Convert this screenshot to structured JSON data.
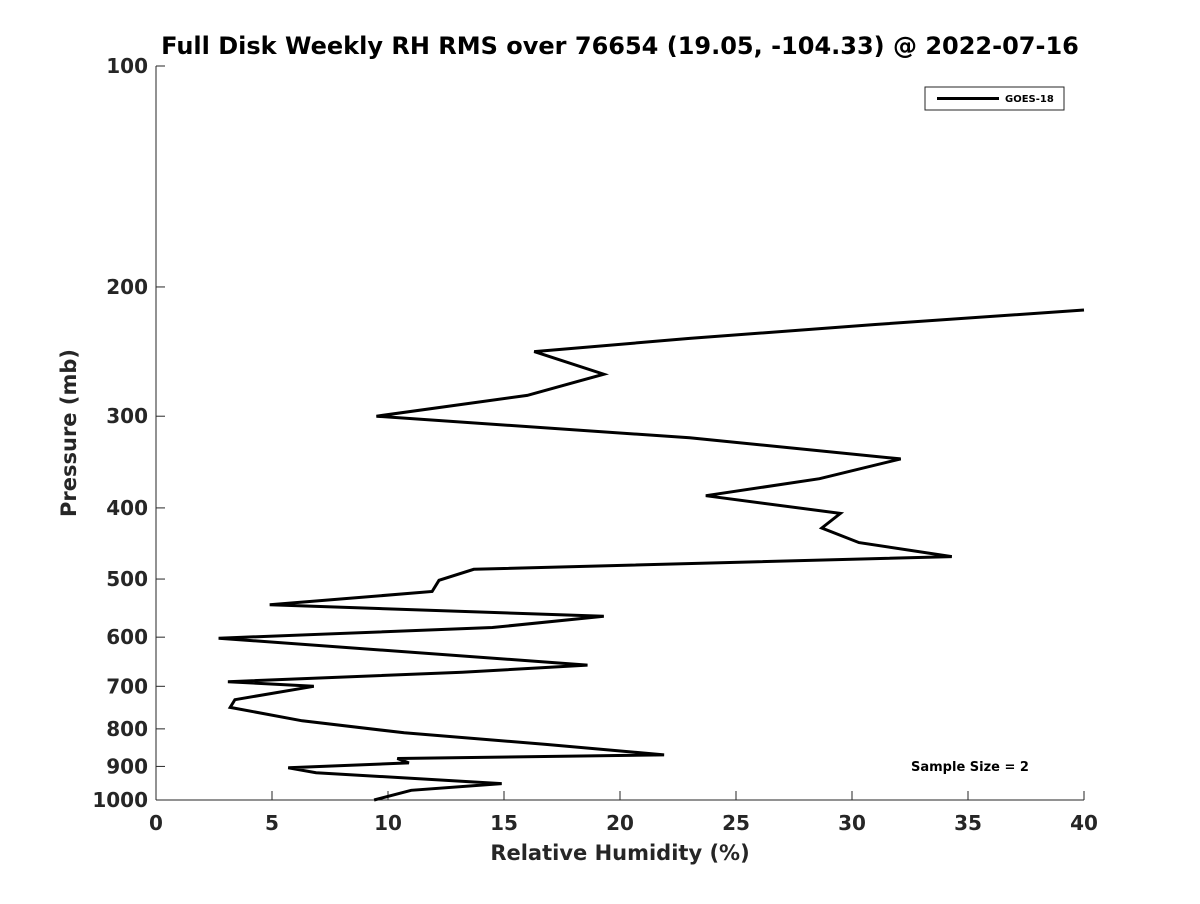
{
  "chart_data": {
    "type": "line",
    "title": "Full Disk Weekly RH RMS over 76654 (19.05, -104.33) @ 2022-07-16",
    "xlabel": "Relative Humidity (%)",
    "ylabel": "Pressure (mb)",
    "xlim": [
      0,
      40
    ],
    "ylim": [
      100,
      1000
    ],
    "y_scale": "log",
    "y_reversed": true,
    "x_ticks": [
      0,
      5,
      10,
      15,
      20,
      25,
      30,
      35,
      40
    ],
    "y_ticks": [
      100,
      200,
      300,
      400,
      500,
      600,
      700,
      800,
      900,
      1000
    ],
    "grid": false,
    "legend_position": "top-right",
    "annotation": "Sample Size = 2",
    "line_color": "#000000",
    "series": [
      {
        "name": "GOES-18",
        "points": [
          [
            40.0,
            215
          ],
          [
            31.0,
            225
          ],
          [
            23.0,
            235
          ],
          [
            16.3,
            245
          ],
          [
            19.3,
            263
          ],
          [
            16.0,
            281
          ],
          [
            9.5,
            300
          ],
          [
            23.0,
            321
          ],
          [
            32.1,
            343
          ],
          [
            28.6,
            365
          ],
          [
            23.7,
            385
          ],
          [
            29.5,
            407
          ],
          [
            28.7,
            426
          ],
          [
            30.3,
            446
          ],
          [
            34.3,
            466
          ],
          [
            13.7,
            485
          ],
          [
            12.2,
            502
          ],
          [
            11.9,
            520
          ],
          [
            4.9,
            542
          ],
          [
            19.3,
            562
          ],
          [
            14.5,
            582
          ],
          [
            2.7,
            602
          ],
          [
            18.6,
            655
          ],
          [
            13.2,
            670
          ],
          [
            3.1,
            690
          ],
          [
            6.8,
            700
          ],
          [
            3.4,
            730
          ],
          [
            3.2,
            748
          ],
          [
            6.3,
            780
          ],
          [
            10.7,
            810
          ],
          [
            16.8,
            840
          ],
          [
            21.9,
            868
          ],
          [
            10.4,
            878
          ],
          [
            10.9,
            890
          ],
          [
            5.7,
            904
          ],
          [
            6.9,
            918
          ],
          [
            14.9,
            950
          ],
          [
            11.0,
            970
          ],
          [
            9.4,
            1000
          ]
        ]
      }
    ]
  }
}
